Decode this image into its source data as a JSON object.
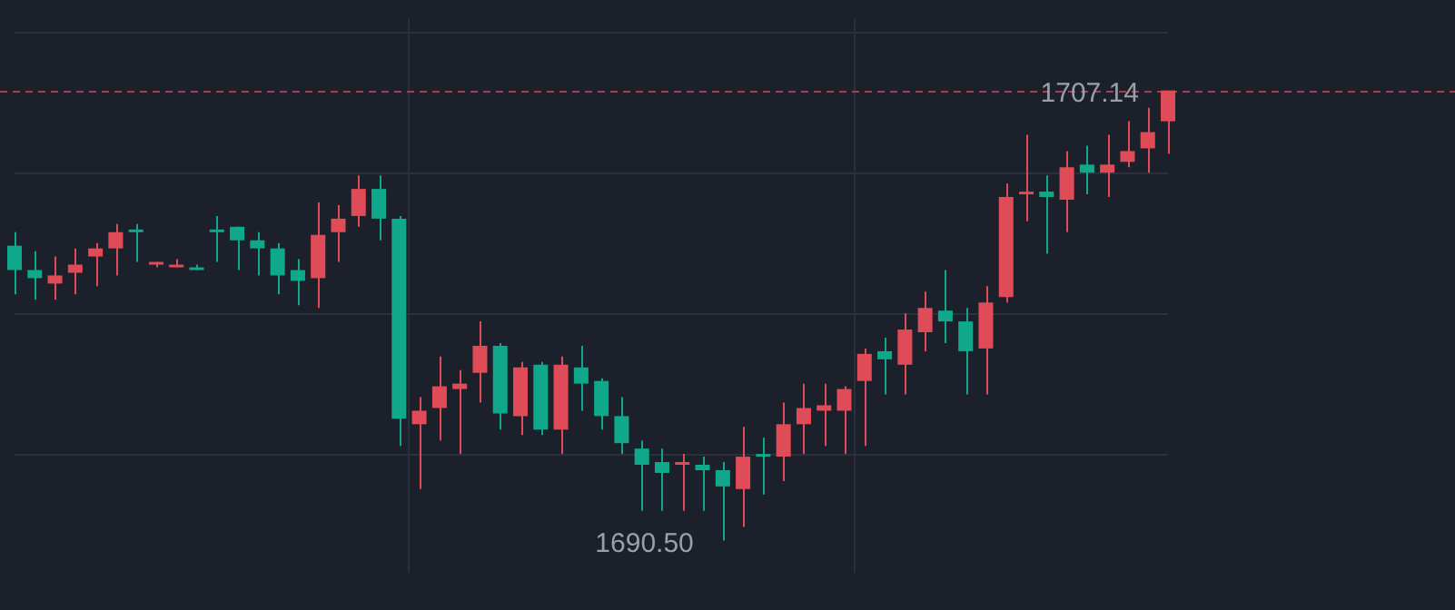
{
  "chart_data": {
    "type": "candlestick",
    "categories": [
      null,
      null,
      null,
      null,
      null,
      null,
      null,
      null,
      null,
      null,
      null,
      null,
      null,
      null,
      null,
      null,
      null,
      null,
      null,
      null,
      null,
      null,
      null,
      null,
      null,
      null,
      null,
      null,
      null,
      null,
      null,
      null,
      null,
      null,
      null,
      null,
      null,
      null,
      null,
      null,
      null,
      null,
      null,
      null,
      null,
      null,
      null,
      null,
      null,
      null,
      null,
      null,
      null,
      null,
      null,
      null,
      null,
      null
    ],
    "ohlc": [
      [
        1701.4,
        1701.9,
        1699.6,
        1700.5
      ],
      [
        1700.5,
        1701.2,
        1699.4,
        1700.2
      ],
      [
        1700.0,
        1701.0,
        1699.4,
        1700.3
      ],
      [
        1700.4,
        1701.3,
        1699.6,
        1700.7
      ],
      [
        1701.0,
        1701.5,
        1699.9,
        1701.3
      ],
      [
        1701.3,
        1702.2,
        1700.3,
        1701.9
      ],
      [
        1702.0,
        1702.2,
        1700.8,
        1701.9
      ],
      [
        1700.7,
        1700.8,
        1700.6,
        1700.8
      ],
      [
        1700.6,
        1700.9,
        1700.6,
        1700.7
      ],
      [
        1700.6,
        1700.7,
        1700.5,
        1700.5
      ],
      [
        1702.0,
        1702.5,
        1700.8,
        1701.9
      ],
      [
        1702.1,
        1702.1,
        1700.5,
        1701.6
      ],
      [
        1701.6,
        1701.9,
        1700.3,
        1701.3
      ],
      [
        1701.3,
        1701.5,
        1699.6,
        1700.3
      ],
      [
        1700.5,
        1700.9,
        1699.2,
        1700.1
      ],
      [
        1700.2,
        1703.0,
        1699.1,
        1701.8
      ],
      [
        1701.9,
        1702.9,
        1700.8,
        1702.4
      ],
      [
        1702.5,
        1704.0,
        1702.1,
        1703.5
      ],
      [
        1703.5,
        1704.0,
        1701.6,
        1702.4
      ],
      [
        1702.4,
        1702.5,
        1694.0,
        1695.0
      ],
      [
        1694.8,
        1695.8,
        1692.4,
        1695.3
      ],
      [
        1695.4,
        1697.3,
        1694.2,
        1696.2
      ],
      [
        1696.1,
        1696.8,
        1693.7,
        1696.3
      ],
      [
        1696.7,
        1698.6,
        1695.6,
        1697.7
      ],
      [
        1697.7,
        1697.8,
        1694.6,
        1695.2
      ],
      [
        1695.1,
        1697.1,
        1694.4,
        1696.9
      ],
      [
        1697.0,
        1697.1,
        1694.4,
        1694.6
      ],
      [
        1694.6,
        1697.3,
        1693.7,
        1697.0
      ],
      [
        1696.9,
        1697.7,
        1695.3,
        1696.3
      ],
      [
        1696.4,
        1696.5,
        1694.6,
        1695.1
      ],
      [
        1695.1,
        1695.8,
        1693.7,
        1694.1
      ],
      [
        1693.9,
        1694.2,
        1691.6,
        1693.3
      ],
      [
        1693.4,
        1693.9,
        1691.6,
        1693.0
      ],
      [
        1693.3,
        1693.7,
        1691.6,
        1693.4
      ],
      [
        1693.3,
        1693.6,
        1691.6,
        1693.1
      ],
      [
        1693.1,
        1693.4,
        1690.5,
        1692.5
      ],
      [
        1692.4,
        1694.7,
        1691.0,
        1693.6
      ],
      [
        1693.7,
        1694.3,
        1692.2,
        1693.6
      ],
      [
        1693.6,
        1695.6,
        1692.7,
        1694.8
      ],
      [
        1694.8,
        1696.3,
        1693.7,
        1695.4
      ],
      [
        1695.3,
        1696.3,
        1694.0,
        1695.5
      ],
      [
        1695.3,
        1696.2,
        1693.7,
        1696.1
      ],
      [
        1696.4,
        1697.6,
        1694.0,
        1697.4
      ],
      [
        1697.5,
        1698.0,
        1695.9,
        1697.2
      ],
      [
        1697.0,
        1698.9,
        1695.9,
        1698.3
      ],
      [
        1698.2,
        1699.7,
        1697.5,
        1699.1
      ],
      [
        1699.0,
        1700.5,
        1697.8,
        1698.6
      ],
      [
        1698.6,
        1699.1,
        1695.9,
        1697.5
      ],
      [
        1697.6,
        1699.9,
        1695.9,
        1699.3
      ],
      [
        1699.5,
        1703.7,
        1699.3,
        1703.2
      ],
      [
        1703.3,
        1705.5,
        1702.3,
        1703.4
      ],
      [
        1703.4,
        1704.0,
        1701.1,
        1703.2
      ],
      [
        1703.1,
        1704.9,
        1701.9,
        1704.3
      ],
      [
        1704.4,
        1705.1,
        1703.3,
        1704.1
      ],
      [
        1704.1,
        1705.5,
        1703.2,
        1704.4
      ],
      [
        1704.5,
        1706.0,
        1704.3,
        1704.9
      ],
      [
        1705.0,
        1706.5,
        1704.1,
        1705.6
      ],
      [
        1706.0,
        1707.14,
        1704.8,
        1707.14
      ]
    ],
    "colors": [
      "#0fa88a",
      "#0fa88a",
      "#e04b58",
      "#e04b58",
      "#e04b58",
      "#e04b58",
      "#0fa88a",
      "#e04b58",
      "#e04b58",
      "#0fa88a",
      "#0fa88a",
      "#0fa88a",
      "#0fa88a",
      "#0fa88a",
      "#0fa88a",
      "#e04b58",
      "#e04b58",
      "#e04b58",
      "#0fa88a",
      "#0fa88a",
      "#e04b58",
      "#e04b58",
      "#e04b58",
      "#e04b58",
      "#0fa88a",
      "#e04b58",
      "#0fa88a",
      "#e04b58",
      "#0fa88a",
      "#0fa88a",
      "#0fa88a",
      "#0fa88a",
      "#0fa88a",
      "#e04b58",
      "#0fa88a",
      "#0fa88a",
      "#e04b58",
      "#0fa88a",
      "#e04b58",
      "#e04b58",
      "#e04b58",
      "#e04b58",
      "#e04b58",
      "#0fa88a",
      "#e04b58",
      "#e04b58",
      "#0fa88a",
      "#0fa88a",
      "#e04b58",
      "#e04b58",
      "#e04b58",
      "#0fa88a",
      "#e04b58",
      "#0fa88a",
      "#e04b58",
      "#e04b58",
      "#e04b58",
      "#e04b58"
    ],
    "ylim": [
      1689.3,
      1709.8
    ],
    "yticks": [
      {
        "value": 1693.68,
        "label": null
      },
      {
        "value": 1698.88,
        "label": null
      },
      {
        "value": 1704.08,
        "label": null
      },
      {
        "value": 1709.28,
        "label": null
      }
    ],
    "grid": true,
    "ref_lines": [
      {
        "axis": "y",
        "value": 1707.14,
        "color": "#a5404b",
        "line_style": "dashed"
      }
    ],
    "annotations": [
      "1707.14",
      "1690.50"
    ]
  }
}
